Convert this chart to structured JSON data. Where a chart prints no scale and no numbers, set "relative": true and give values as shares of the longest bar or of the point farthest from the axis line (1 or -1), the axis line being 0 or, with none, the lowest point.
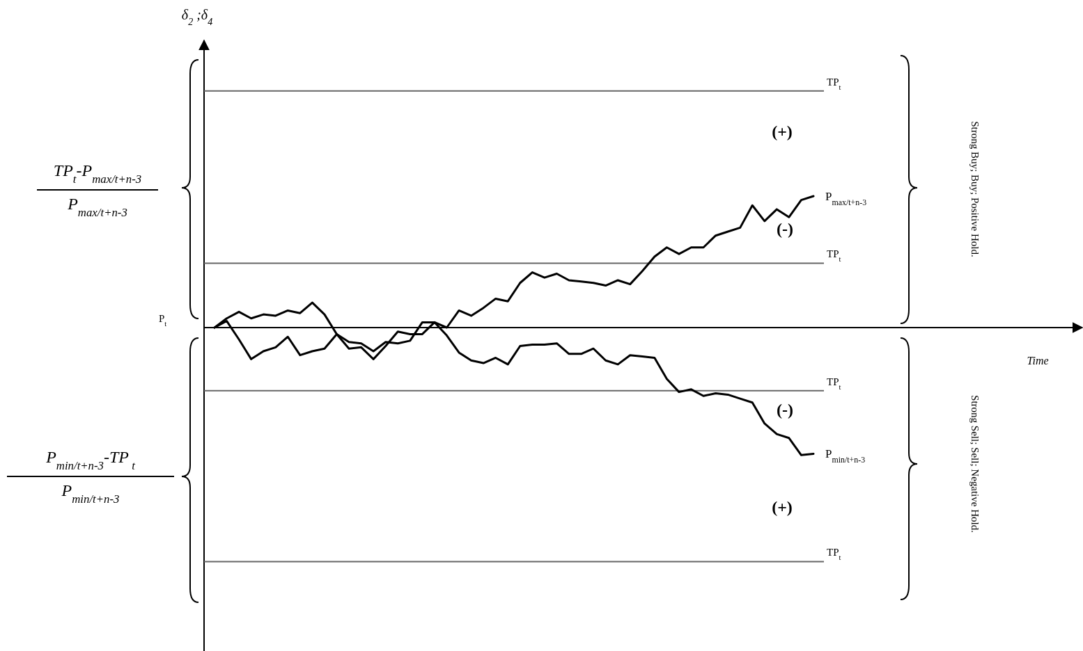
{
  "chart_data": {
    "type": "line",
    "relative": true,
    "categories": [
      null,
      null,
      null,
      null,
      null,
      null,
      null,
      null,
      null,
      null,
      null,
      null,
      null,
      null,
      null,
      null,
      null,
      null,
      null,
      null,
      null,
      null,
      null,
      null,
      null,
      null,
      null,
      null,
      null,
      null,
      null,
      null,
      null,
      null,
      null,
      null,
      null,
      null,
      null,
      null,
      null,
      null,
      null,
      null,
      null,
      null,
      null,
      null,
      null,
      null
    ],
    "series": [
      {
        "name": "P$_{max/t+n-3}$",
        "color": "#000000",
        "values": [
          0,
          0.07,
          0.12,
          0.07,
          0.1,
          0.09,
          0.13,
          0.11,
          0.19,
          0.1,
          -0.05,
          -0.11,
          -0.12,
          -0.18,
          -0.11,
          -0.12,
          -0.1,
          0.04,
          0.04,
          0,
          0.13,
          0.09,
          0.15,
          0.22,
          0.2,
          0.34,
          0.42,
          0.38,
          0.41,
          0.36,
          0.35,
          0.34,
          0.32,
          0.36,
          0.33,
          0.43,
          0.54,
          0.61,
          0.56,
          0.61,
          0.61,
          0.7,
          0.73,
          0.76,
          0.93,
          0.81,
          0.9,
          0.84,
          0.97,
          1
        ]
      },
      {
        "name": "P$_{min/t+n-3}$",
        "color": "#000000",
        "values": [
          0,
          0.05,
          -0.09,
          -0.24,
          -0.18,
          -0.15,
          -0.07,
          -0.21,
          -0.18,
          -0.16,
          -0.05,
          -0.16,
          -0.15,
          -0.24,
          -0.14,
          -0.03,
          -0.05,
          -0.05,
          0.04,
          -0.06,
          -0.19,
          -0.25,
          -0.27,
          -0.23,
          -0.28,
          -0.14,
          -0.13,
          -0.13,
          -0.12,
          -0.2,
          -0.2,
          -0.16,
          -0.25,
          -0.28,
          -0.21,
          -0.22,
          -0.23,
          -0.39,
          -0.49,
          -0.47,
          -0.52,
          -0.5,
          -0.51,
          -0.54,
          -0.57,
          -0.73,
          -0.81,
          -0.84,
          -0.97,
          -0.96
        ]
      }
    ],
    "ref_lines": [
      {
        "axis": "y",
        "value": 1.8,
        "label": "TP$_{t}$",
        "color": "#666666"
      },
      {
        "axis": "y",
        "value": 0.49,
        "label": "TP$_{t}$",
        "color": "#666666"
      },
      {
        "axis": "y",
        "value": -0.48,
        "label": "TP$_{t}$",
        "color": "#666666"
      },
      {
        "axis": "y",
        "value": -1.78,
        "label": "TP$_{t}$",
        "color": "#666666"
      }
    ],
    "annotations": [
      "(+)",
      "(-)",
      "(-)",
      "(+)",
      "TP$_{t}$-P$_{max/t+n-3}$",
      "P$_{max/t+n-3}$",
      "P$_{min/t+n-3}$-TP$_{ t}$",
      "P$_{min/t+n-3}$",
      "Strong Buy; Buy; Positive Hold.",
      "Strong Sell; Sell; Negative Hold.",
      "P$_{t}$",
      "δ$_{2}$ ;δ$_{4}$",
      "Time"
    ]
  }
}
